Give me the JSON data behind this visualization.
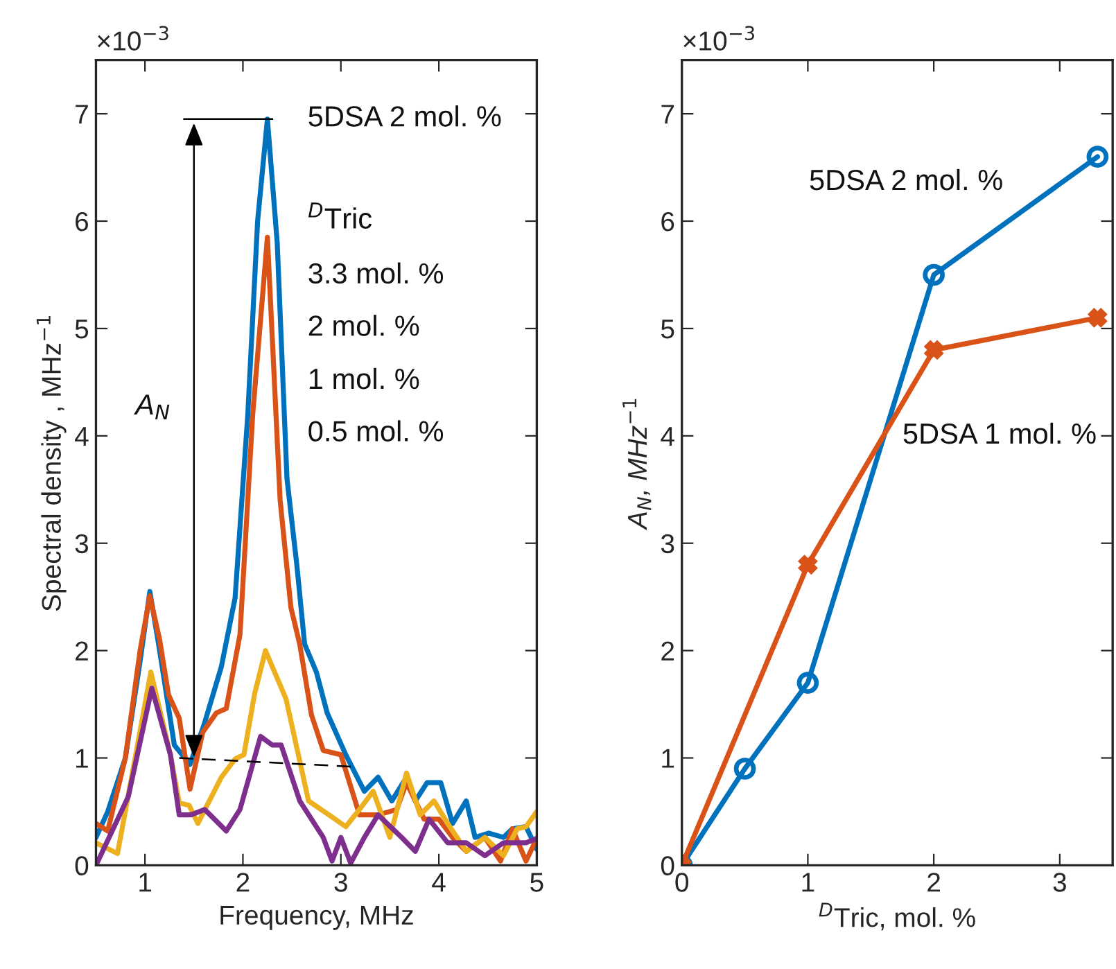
{
  "chart_data": [
    {
      "type": "line",
      "xlabel": "Frequency, MHz",
      "ylabel": "Spectral density , MHz$^{−1}$",
      "xlim": [
        0.5,
        5
      ],
      "ylim": [
        0,
        7.5
      ],
      "xticks": [
        1,
        2,
        3,
        4,
        5
      ],
      "yticks": [
        0,
        1,
        2,
        3,
        4,
        5,
        6,
        7
      ],
      "grid": false,
      "marker": "none",
      "line_style": "solid",
      "series": [
        {
          "color": "#0072bd",
          "x": [
            0.5,
            0.62,
            0.8,
            0.95,
            1.05,
            1.15,
            1.3,
            1.46,
            1.6,
            1.78,
            1.92,
            2.05,
            2.15,
            2.25,
            2.35,
            2.45,
            2.55,
            2.63,
            2.75,
            2.86,
            3.05,
            3.24,
            3.38,
            3.52,
            3.67,
            3.76,
            3.88,
            4.02,
            4.14,
            4.28,
            4.37,
            4.51,
            4.66,
            4.75,
            4.89,
            5.0
          ],
          "values": [
            0.26,
            0.5,
            1.0,
            1.9,
            2.55,
            2.0,
            1.12,
            0.94,
            1.3,
            1.85,
            2.49,
            4.2,
            6.0,
            6.95,
            5.8,
            3.6,
            2.8,
            2.06,
            1.8,
            1.42,
            1.03,
            0.69,
            0.82,
            0.6,
            0.82,
            0.6,
            0.77,
            0.77,
            0.39,
            0.6,
            0.26,
            0.3,
            0.26,
            0.34,
            0.36,
            0.15
          ]
        },
        {
          "color": "#d95319",
          "x": [
            0.5,
            0.62,
            0.8,
            0.95,
            1.05,
            1.15,
            1.24,
            1.35,
            1.46,
            1.59,
            1.73,
            1.83,
            1.97,
            2.1,
            2.25,
            2.38,
            2.49,
            2.58,
            2.7,
            2.82,
            3.0,
            3.19,
            3.38,
            3.57,
            3.67,
            3.85,
            4.0,
            4.14,
            4.28,
            4.47,
            4.63,
            4.75,
            4.89,
            5.0
          ],
          "values": [
            0.39,
            0.32,
            1.0,
            2.0,
            2.51,
            2.1,
            1.59,
            1.37,
            0.71,
            1.24,
            1.42,
            1.46,
            2.15,
            4.2,
            5.85,
            3.4,
            2.4,
            2.06,
            1.4,
            1.07,
            1.03,
            0.47,
            0.47,
            0.52,
            0.77,
            0.43,
            0.43,
            0.26,
            0.13,
            0.26,
            0.04,
            0.34,
            0.04,
            0.25
          ]
        },
        {
          "color": "#edb120",
          "x": [
            0.5,
            0.72,
            0.9,
            1.06,
            1.26,
            1.35,
            1.45,
            1.54,
            1.78,
            1.92,
            2.01,
            2.12,
            2.23,
            2.44,
            2.67,
            2.91,
            3.05,
            3.19,
            3.33,
            3.5,
            3.67,
            3.81,
            3.95,
            4.09,
            4.28,
            4.47,
            4.66,
            4.8,
            4.89,
            5.0
          ],
          "values": [
            0.21,
            0.11,
            1.0,
            1.8,
            1.03,
            0.58,
            0.56,
            0.39,
            0.82,
            0.99,
            1.03,
            1.6,
            2.0,
            1.55,
            0.6,
            0.45,
            0.36,
            0.52,
            0.69,
            0.26,
            0.86,
            0.47,
            0.6,
            0.39,
            0.13,
            0.26,
            0.09,
            0.34,
            0.36,
            0.5
          ]
        },
        {
          "color": "#7e2f8e",
          "x": [
            0.5,
            0.83,
            1.07,
            1.26,
            1.35,
            1.47,
            1.61,
            1.83,
            1.97,
            2.18,
            2.3,
            2.39,
            2.58,
            2.82,
            2.91,
            3.0,
            3.1,
            3.24,
            3.38,
            3.62,
            3.76,
            3.9,
            4.09,
            4.28,
            4.47,
            4.66,
            4.89,
            5.0
          ],
          "values": [
            0.0,
            0.64,
            1.65,
            1.03,
            0.47,
            0.47,
            0.52,
            0.32,
            0.52,
            1.2,
            1.12,
            1.12,
            0.6,
            0.26,
            0.04,
            0.26,
            0.02,
            0.26,
            0.47,
            0.26,
            0.13,
            0.43,
            0.21,
            0.21,
            0.09,
            0.21,
            0.21,
            0.25
          ]
        }
      ],
      "annotations": [
        "×10$^{−3}$",
        "5DSA 2 mol. %",
        "$^{D}$Tric",
        "3.3 mol. %",
        "2 mol. %",
        "1 mol. %",
        "0.5 mol. %",
        "A$_{N}$"
      ]
    },
    {
      "type": "line",
      "xlabel": "$^{D}$Tric, mol. %",
      "ylabel": "A$_{N}$, MHz$^{−1}$",
      "xlim": [
        0,
        3.42
      ],
      "ylim": [
        0,
        7.5
      ],
      "xticks": [
        0,
        1,
        2,
        3
      ],
      "yticks": [
        0,
        1,
        2,
        3,
        4,
        5,
        6,
        7
      ],
      "grid": false,
      "line_style": "solid",
      "series": [
        {
          "color": "#0072bd",
          "marker": "circle",
          "x": [
            0,
            0.5,
            1,
            2,
            3.3
          ],
          "values": [
            0,
            0.9,
            1.7,
            5.5,
            6.6
          ]
        },
        {
          "color": "#d95319",
          "marker": "cross",
          "x": [
            0,
            1,
            2,
            3.3
          ],
          "values": [
            0,
            2.8,
            4.8,
            5.1
          ]
        }
      ],
      "annotations": [
        "×10$^{−3}$",
        "5DSA 2 mol. %",
        "5DSA 1 mol. %"
      ]
    }
  ]
}
